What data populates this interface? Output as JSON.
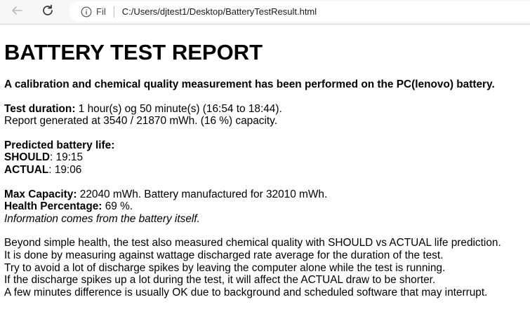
{
  "browser": {
    "scheme_label": "Fil",
    "url": "C:/Users/djtest1/Desktop/BatteryTestResult.html",
    "icons": [
      "back-arrow-icon",
      "reload-icon",
      "info-icon"
    ]
  },
  "report": {
    "title": "BATTERY TEST REPORT",
    "subtitle": "A calibration and chemical quality measurement has been performed on the PC(lenovo) battery.",
    "duration_label": "Test duration:",
    "duration_value": " 1 hour(s) og 50 minute(s) (16:54 to 18:44).",
    "generated_text": "Report generated at 3540 / 21870 mWh. (16 %) capacity.",
    "predicted_heading": "Predicted battery life:",
    "should_label": "SHOULD",
    "should_value": ": 19:15",
    "actual_label": "ACTUAL",
    "actual_value": ": 19:06",
    "max_capacity_label": "Max Capacity:",
    "max_capacity_value": " 22040 mWh. Battery manufactured for 32010 mWh.",
    "health_label": "Health Percentage:",
    "health_value": " 69 %.",
    "info_note": "Information comes from the battery itself.",
    "explanation": [
      "Beyond simple health, the test also measured chemical quality with SHOULD vs ACTUAL life prediction.",
      "It is done by measuring against wattage discharged rate average for the duration of the test.",
      "Try to avoid a lot of discharge spikes by leaving the computer alone while the test is running.",
      "If the discharge spikes up a lot during the test, it will affect the ACTUAL draw to be shorter.",
      "A few minutes difference is usually OK due to background and scheduled software that may interrupt."
    ]
  }
}
